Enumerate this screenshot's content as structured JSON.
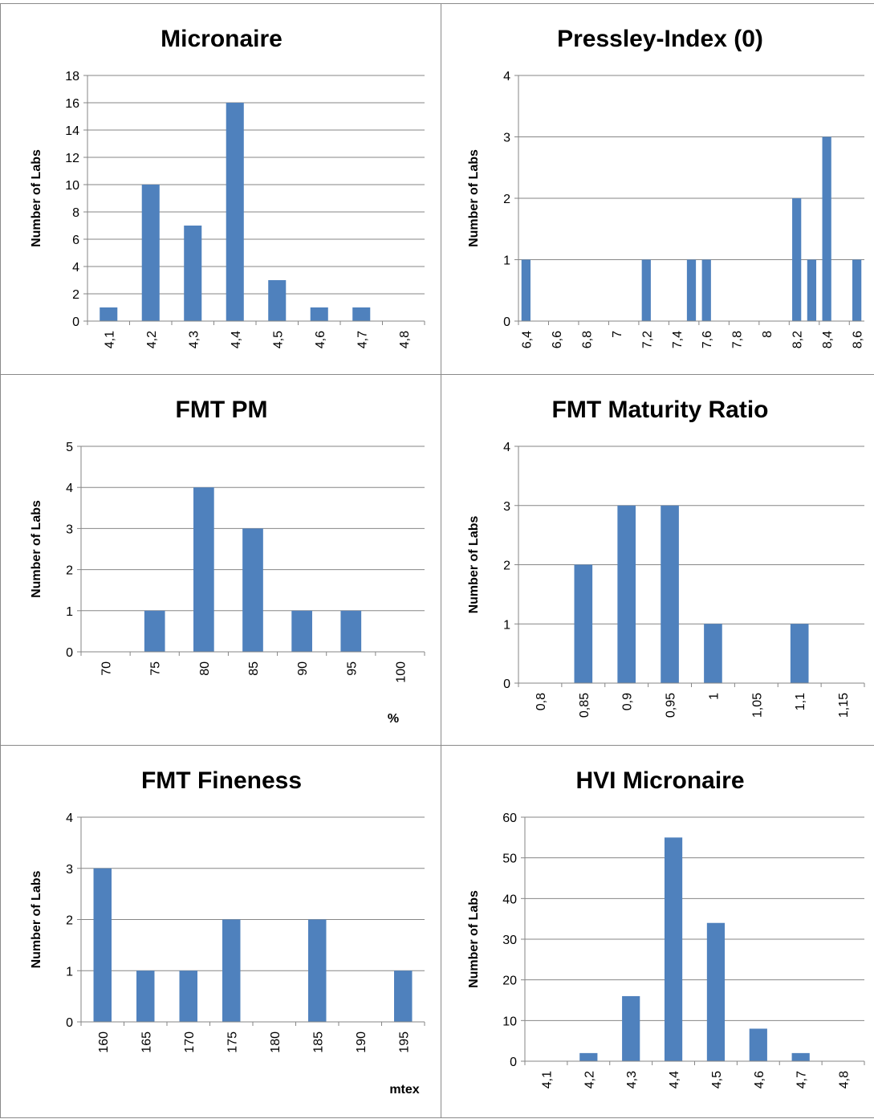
{
  "chart_data": [
    {
      "type": "bar",
      "title": "Micronaire",
      "ylabel": "Number of Labs",
      "xlabel": "",
      "ylim": [
        0,
        18
      ],
      "yticks": [
        0,
        2,
        4,
        6,
        8,
        10,
        12,
        14,
        16,
        18
      ],
      "categories": [
        "4,1",
        "4,2",
        "4,3",
        "4,4",
        "4,5",
        "4,6",
        "4,7",
        "4,8"
      ],
      "values": [
        1,
        10,
        7,
        16,
        3,
        1,
        1,
        0
      ],
      "color": "#4f81bd",
      "grid": true
    },
    {
      "type": "bar",
      "title": "Pressley-Index (0)",
      "ylabel": "Number of Labs",
      "xlabel": "",
      "ylim": [
        0,
        4
      ],
      "yticks": [
        0,
        1,
        2,
        3,
        4
      ],
      "xlim": [
        6.4,
        8.7
      ],
      "xticks": [
        "6,4",
        "6,6",
        "6,8",
        "7",
        "7,2",
        "7,4",
        "7,6",
        "7,8",
        "8",
        "8,2",
        "8,4",
        "8,6"
      ],
      "x": [
        6.4,
        7.2,
        7.5,
        7.6,
        8.2,
        8.3,
        8.4,
        8.7
      ],
      "values": [
        1,
        1,
        1,
        1,
        2,
        1,
        3,
        1
      ],
      "color": "#4f81bd",
      "grid": true
    },
    {
      "type": "bar",
      "title": "FMT PM",
      "ylabel": "Number of Labs",
      "xlabel": "%",
      "ylim": [
        0,
        5
      ],
      "yticks": [
        0,
        1,
        2,
        3,
        4,
        5
      ],
      "categories": [
        "70",
        "75",
        "80",
        "85",
        "90",
        "95",
        "100"
      ],
      "values": [
        0,
        1,
        4,
        3,
        1,
        1,
        0
      ],
      "color": "#4f81bd",
      "grid": true
    },
    {
      "type": "bar",
      "title": "FMT Maturity Ratio",
      "ylabel": "Number of Labs",
      "xlabel": "",
      "ylim": [
        0,
        4
      ],
      "yticks": [
        0,
        1,
        2,
        3,
        4
      ],
      "categories": [
        "0,8",
        "0,85",
        "0,9",
        "0,95",
        "1",
        "1,05",
        "1,1",
        "1,15"
      ],
      "values": [
        0,
        2,
        3,
        3,
        1,
        0,
        1,
        0
      ],
      "color": "#4f81bd",
      "grid": true
    },
    {
      "type": "bar",
      "title": "FMT Fineness",
      "ylabel": "Number of Labs",
      "xlabel": "mtex",
      "ylim": [
        0,
        4
      ],
      "yticks": [
        0,
        1,
        2,
        3,
        4
      ],
      "categories": [
        "160",
        "165",
        "170",
        "175",
        "180",
        "185",
        "190",
        "195"
      ],
      "values": [
        3,
        1,
        1,
        2,
        0,
        2,
        0,
        1
      ],
      "color": "#4f81bd",
      "grid": true
    },
    {
      "type": "bar",
      "title": "HVI Micronaire",
      "ylabel": "Number of Labs",
      "xlabel": "",
      "ylim": [
        0,
        60
      ],
      "yticks": [
        0,
        10,
        20,
        30,
        40,
        50,
        60
      ],
      "categories": [
        "4,1",
        "4,2",
        "4,3",
        "4,4",
        "4,5",
        "4,6",
        "4,7",
        "4,8"
      ],
      "values": [
        0,
        2,
        16,
        55,
        34,
        8,
        2,
        0
      ],
      "color": "#4f81bd",
      "grid": true
    }
  ]
}
